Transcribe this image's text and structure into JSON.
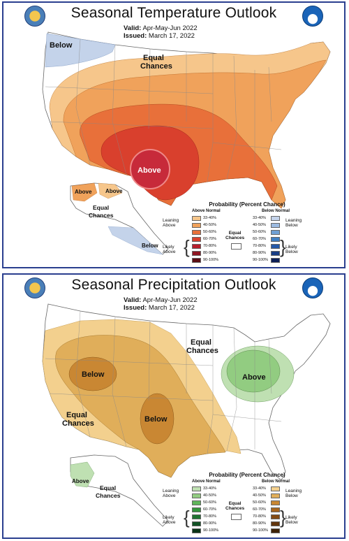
{
  "temperature": {
    "title": "Seasonal Temperature Outlook",
    "valid_label": "Valid:",
    "valid_value": "Apr-May-Jun 2022",
    "issued_label": "Issued:",
    "issued_value": "March 17, 2022",
    "labels": {
      "below": "Below",
      "equal1": "Equal",
      "equal2": "Chances",
      "above": "Above",
      "ak_above_w": "Above",
      "ak_above_e": "Above",
      "ak_equal1": "Equal",
      "ak_equal2": "Chances",
      "ak_below": "Below"
    },
    "legend": {
      "title": "Probability (Percent Chance)",
      "left_head": "Above Normal",
      "right_head": "Below Normal",
      "left_values": [
        "33-40%",
        "40-50%",
        "50-60%",
        "60-70%",
        "70-80%",
        "80-90%",
        "90-100%"
      ],
      "right_values": [
        "33-40%",
        "40-50%",
        "50-60%",
        "60-70%",
        "70-80%",
        "80-90%",
        "90-100%"
      ],
      "left_colors": [
        "#f6c68b",
        "#f0a25b",
        "#e8703a",
        "#d9402d",
        "#b81f2c",
        "#8f1522",
        "#5a0d14"
      ],
      "right_colors": [
        "#c4d3ea",
        "#9dbbe0",
        "#6fa0d4",
        "#3f7fc3",
        "#2559a8",
        "#183d85",
        "#0c1f58"
      ],
      "leaning_left1": "Leaning",
      "leaning_left2": "Above",
      "leaning_right1": "Leaning",
      "leaning_right2": "Below",
      "likely_left1": "Likely",
      "likely_left2": "Above",
      "likely_right1": "Likely",
      "likely_right2": "Below",
      "equal1": "Equal",
      "equal2": "Chances"
    }
  },
  "precipitation": {
    "title": "Seasonal Precipitation Outlook",
    "valid_label": "Valid:",
    "valid_value": "Apr-May-Jun 2022",
    "issued_label": "Issued:",
    "issued_value": "March 17, 2022",
    "labels": {
      "equal_ne1": "Equal",
      "equal_ne2": "Chances",
      "above_gl": "Above",
      "below_nw": "Below",
      "below_sw": "Below",
      "equal_w1": "Equal",
      "equal_w2": "Chances",
      "ak_above": "Above",
      "ak_equal1": "Equal",
      "ak_equal2": "Chances"
    },
    "legend": {
      "title": "Probability (Percent Chance)",
      "left_head": "Above Normal",
      "right_head": "Below Normal",
      "left_values": [
        "33-40%",
        "40-50%",
        "50-60%",
        "60-70%",
        "70-80%",
        "80-90%",
        "90-100%"
      ],
      "right_values": [
        "33-40%",
        "40-50%",
        "50-60%",
        "60-70%",
        "70-80%",
        "80-90%",
        "90-100%"
      ],
      "left_colors": [
        "#bfe0b2",
        "#92cc81",
        "#5fb55a",
        "#35953d",
        "#1e7330",
        "#125225",
        "#0a3317"
      ],
      "right_colors": [
        "#f3d08e",
        "#e0ae5a",
        "#c98733",
        "#a8661f",
        "#844b14",
        "#62350d",
        "#3f2207"
      ],
      "leaning_left1": "Leaning",
      "leaning_left2": "Above",
      "leaning_right1": "Leaning",
      "leaning_right2": "Below",
      "likely_left1": "Likely",
      "likely_left2": "Above",
      "likely_right1": "Likely",
      "likely_right2": "Below",
      "equal1": "Equal",
      "equal2": "Chances"
    }
  }
}
